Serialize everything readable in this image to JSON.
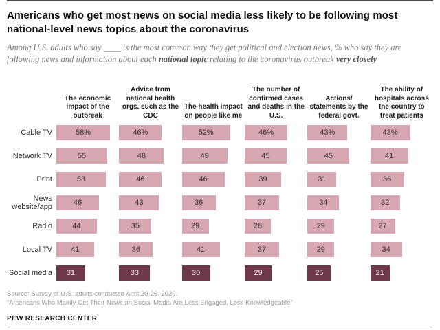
{
  "title": "Americans who get most news on social media less likely to be following most national-level news topics about the coronavirus",
  "subtitle": {
    "pre": "Among U.S. adults who say ____ is the most common way they get political and election news, % who say they are following news and information about each ",
    "bold1": "national topic",
    "mid": " relating to the coronavirus outbreak ",
    "bold2": "very closely"
  },
  "chart_data": {
    "type": "bar",
    "orientation": "horizontal",
    "unit": "%",
    "value_suffix_first_row": "%",
    "columns": [
      "The economic impact of the outbreak",
      "Advice from national health orgs. such as the CDC",
      "The health impact on people like me",
      "The number of confirmed cases and deaths in the U.S.",
      "Actions/ statements by the federal govt.",
      "The ability of hospitals across the country to treat patients"
    ],
    "series": [
      {
        "name": "Cable TV",
        "values": [
          58,
          46,
          52,
          46,
          43,
          43
        ],
        "highlight": false
      },
      {
        "name": "Network TV",
        "values": [
          55,
          48,
          49,
          45,
          45,
          41
        ],
        "highlight": false
      },
      {
        "name": "Print",
        "values": [
          53,
          46,
          46,
          39,
          31,
          36
        ],
        "highlight": false
      },
      {
        "name": "News website/app",
        "values": [
          46,
          43,
          36,
          37,
          34,
          32
        ],
        "highlight": false
      },
      {
        "name": "Radio",
        "values": [
          44,
          35,
          29,
          28,
          29,
          27
        ],
        "highlight": false
      },
      {
        "name": "Local TV",
        "values": [
          41,
          36,
          41,
          37,
          29,
          34
        ],
        "highlight": false
      },
      {
        "name": "Social media",
        "values": [
          31,
          33,
          30,
          29,
          25,
          21
        ],
        "highlight": true
      }
    ],
    "xlim": [
      0,
      62
    ],
    "colors": {
      "bar": "#d8a8b2",
      "highlight_bar": "#6e3a49"
    }
  },
  "footer": {
    "source": "Source: Survey of U.S. adults conducted April 20-26, 2020.",
    "note": "“Americans Who Mainly Get Their News on Social Media Are Less Engaged, Less Knowledgeable”",
    "brand": "PEW RESEARCH CENTER"
  }
}
